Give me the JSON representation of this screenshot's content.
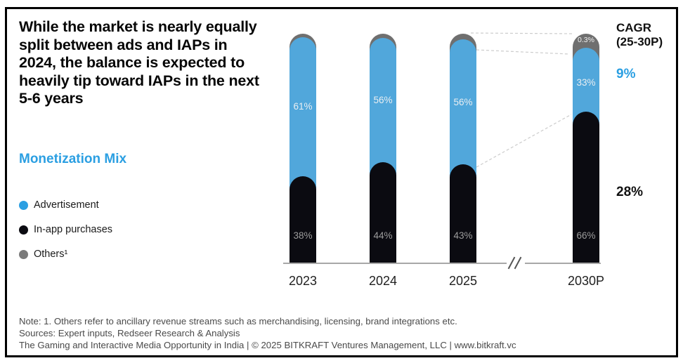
{
  "headline": "While the market is nearly equally split between ads and IAPs in 2024, the balance is expected to heavily tip toward IAPs in the next 5-6 years",
  "section_title": "Monetization Mix",
  "colors": {
    "accent_blue": "#2b9fe2",
    "bar_blue": "#51a7db",
    "bar_black": "#0b0b11",
    "bar_gray": "#6f6f6f",
    "legend_gray": "#7a7a7a"
  },
  "legend": [
    {
      "label": "Advertisement",
      "color": "#2b9fe2"
    },
    {
      "label": "In-app purchases",
      "color": "#0b0b11"
    },
    {
      "label": "Others¹",
      "color": "#7a7a7a"
    }
  ],
  "chart_data": {
    "type": "bar",
    "stacked": true,
    "unit": "percent of monetization mix",
    "categories": [
      "2023",
      "2024",
      "2025",
      "2030P"
    ],
    "series": [
      {
        "name": "Advertisement",
        "color": "#51a7db",
        "values": [
          61,
          56,
          56,
          33
        ],
        "labels": [
          "61%",
          "56%",
          "56%",
          "33%"
        ]
      },
      {
        "name": "In-app purchases",
        "color": "#0b0b11",
        "values": [
          38,
          44,
          43,
          66
        ],
        "labels": [
          "38%",
          "44%",
          "43%",
          "66%"
        ]
      },
      {
        "name": "Others",
        "color": "#6f6f6f",
        "values": [
          null,
          null,
          null,
          0.3
        ],
        "labels": [
          null,
          null,
          null,
          "0.3%"
        ]
      }
    ],
    "axis_break_between": [
      "2025",
      "2030P"
    ],
    "dashed_guides": "connect tops of 2025 segments to 2030P segments",
    "legend_position": "left"
  },
  "cagr": {
    "heading": "CAGR",
    "period": "(25-30P)",
    "advertisement_value": "9%",
    "iap_value": "28%"
  },
  "footnotes": [
    "Note: 1. Others refer to ancillary revenue streams such as merchandising, licensing, brand integrations etc.",
    "Sources: Expert inputs, Redseer Research & Analysis",
    "The Gaming and Interactive Media Opportunity in India | © 2025 BITKRAFT Ventures Management, LLC | www.bitkraft.vc"
  ]
}
